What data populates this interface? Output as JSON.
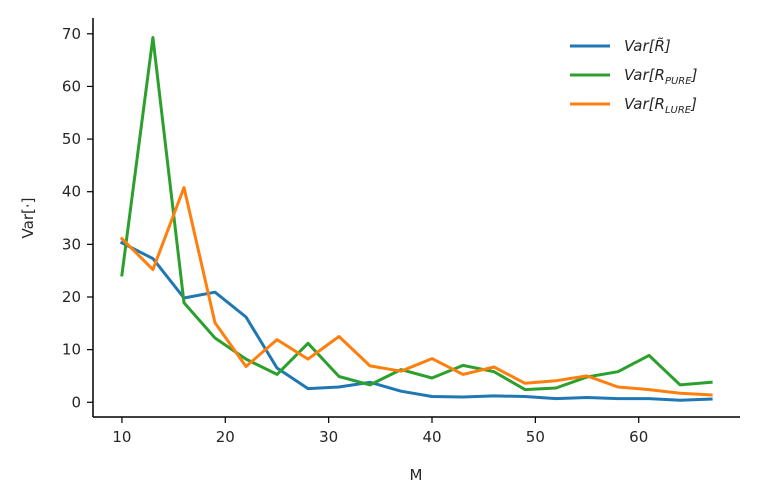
{
  "chart_data": {
    "type": "line",
    "xlabel": "M",
    "ylabel": "Var[·]",
    "xlim": [
      7.2,
      69.8
    ],
    "ylim": [
      -2.8,
      73
    ],
    "x_ticks": [
      10,
      20,
      30,
      40,
      50,
      60
    ],
    "y_ticks": [
      0,
      10,
      20,
      30,
      40,
      50,
      60,
      70
    ],
    "grid": false,
    "legend_position": "top-right",
    "x": [
      10,
      13,
      16,
      19,
      22,
      25,
      28,
      31,
      34,
      37,
      40,
      43,
      46,
      49,
      52,
      55,
      58,
      61,
      64,
      67
    ],
    "series": [
      {
        "name": "Var[R̃]",
        "legend": {
          "base": "Var[R̃]",
          "sub": "",
          "suffix": ""
        },
        "color": "#1f77b4",
        "values": [
          30.3,
          27.3,
          19.8,
          20.9,
          16.2,
          6.5,
          2.6,
          2.9,
          3.8,
          2.1,
          1.1,
          1.0,
          1.2,
          1.1,
          0.7,
          0.9,
          0.7,
          0.7,
          0.4,
          0.6
        ]
      },
      {
        "name": "Var[R_PURE]",
        "legend": {
          "base": "Var[R",
          "sub": "PURE",
          "suffix": "]"
        },
        "color": "#2ca02c",
        "values": [
          24.2,
          69.3,
          18.9,
          12.2,
          8.2,
          5.3,
          11.2,
          4.9,
          3.3,
          6.2,
          4.6,
          7.0,
          5.8,
          2.4,
          2.7,
          4.8,
          5.8,
          8.9,
          3.3,
          3.8
        ]
      },
      {
        "name": "Var[R_LURE]",
        "legend": {
          "base": "Var[R",
          "sub": "LURE",
          "suffix": "]"
        },
        "color": "#ff7f0e",
        "values": [
          31.1,
          25.2,
          40.8,
          15.1,
          6.8,
          11.9,
          8.2,
          12.5,
          6.9,
          5.9,
          8.3,
          5.3,
          6.7,
          3.6,
          4.1,
          5.0,
          2.9,
          2.4,
          1.7,
          1.4
        ]
      }
    ]
  }
}
